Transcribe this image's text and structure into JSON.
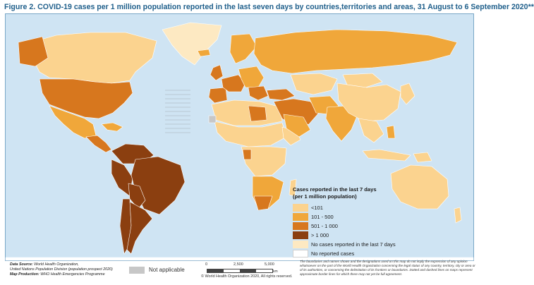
{
  "figure": {
    "title": "Figure 2. COVID-19 cases per 1 million population reported in the last seven days by countries,territories and areas,  31 August to 6 September 2020**"
  },
  "colors": {
    "ocean": "#cfe4f3",
    "border": "#b3b3b3",
    "title": "#1f5f8b",
    "frame": "#7aa7c7",
    "not_applicable": "#c7c7c7"
  },
  "legend": {
    "title_line1": "Cases reported in the last 7 days",
    "title_line2": "(per 1 million population)",
    "items": [
      {
        "label": "<101",
        "color": "#fbd38f"
      },
      {
        "label": "101 - 500",
        "color": "#f0a73a"
      },
      {
        "label": "501 - 1 000",
        "color": "#d7771e"
      },
      {
        "label": "> 1 000",
        "color": "#8b3f10"
      },
      {
        "label": "No cases reported in the last 7 days",
        "color": "#fde9c2"
      },
      {
        "label": "No reported cases",
        "color": "#ffffff"
      }
    ]
  },
  "not_applicable": {
    "label": "Not applicable"
  },
  "source": {
    "data_source_label": "Data Source",
    "data_source_line1": "World Health Organization,",
    "data_source_line2": "United Nations Population Division (population prospect 2020)",
    "map_production_label": "Map Production",
    "map_production_value": "WHO Health Emergencies Programme"
  },
  "scale": {
    "ticks": [
      "0",
      "2,500",
      "5,000"
    ],
    "unit": "km"
  },
  "copyright": "© World Health Organization  2020,  All rights reserved.",
  "disclaimer": "The boundaries and names shown and the designations used on this map do not imply the expression of any opinion whatsoever on the part of the World Health Organization concerning the legal status of any country, territory, city or area or of its authorities, or concerning the delimitation of its frontiers or boundaries. Dotted and dashed lines on maps represent approximate border lines for which there may not yet be full agreement."
}
